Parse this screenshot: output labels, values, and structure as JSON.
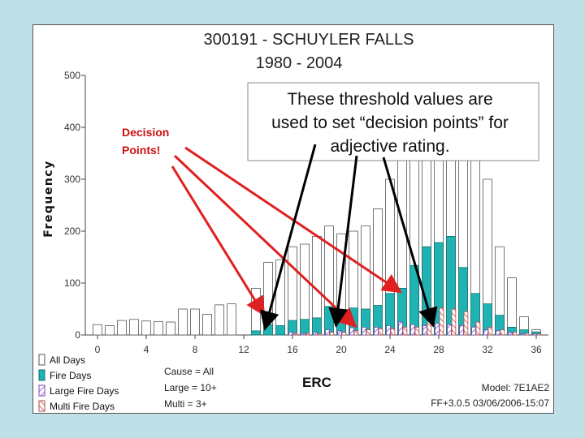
{
  "chart_data": {
    "type": "bar",
    "title_line1": "300191 - SCHUYLER FALLS",
    "title_line2": "1980 - 2004",
    "ylabel": "Frequency",
    "xlabel": "ERC",
    "ylim": [
      0,
      500
    ],
    "yticks": [
      0,
      100,
      200,
      300,
      400,
      500
    ],
    "xlim": [
      -1,
      37
    ],
    "xticks": [
      0,
      4,
      8,
      12,
      16,
      20,
      24,
      28,
      32,
      36
    ],
    "x": [
      0,
      1,
      2,
      3,
      4,
      5,
      6,
      7,
      8,
      9,
      10,
      11,
      12,
      13,
      14,
      15,
      16,
      17,
      18,
      19,
      20,
      21,
      22,
      23,
      24,
      25,
      26,
      27,
      28,
      29,
      30,
      31,
      32,
      33,
      34,
      35,
      36
    ],
    "series": [
      {
        "name": "All Days",
        "color": "#ffffff",
        "values": [
          20,
          18,
          28,
          30,
          27,
          26,
          25,
          50,
          50,
          40,
          58,
          60,
          0,
          90,
          140,
          145,
          170,
          175,
          190,
          210,
          195,
          200,
          210,
          243,
          300,
          400,
          450,
          480,
          460,
          430,
          400,
          350,
          300,
          170,
          110,
          35,
          10
        ]
      },
      {
        "name": "Fire Days",
        "color": "#1fb3b3",
        "values": [
          0,
          0,
          0,
          0,
          0,
          0,
          0,
          0,
          0,
          0,
          0,
          0,
          0,
          8,
          20,
          18,
          28,
          30,
          33,
          55,
          40,
          52,
          50,
          57,
          80,
          90,
          134,
          170,
          178,
          190,
          130,
          80,
          60,
          38,
          15,
          10,
          6
        ]
      },
      {
        "name": "Large Fire Days",
        "color": "#9a6ad0",
        "values": [
          0,
          0,
          0,
          0,
          0,
          0,
          0,
          0,
          0,
          0,
          0,
          0,
          0,
          0,
          0,
          0,
          5,
          3,
          5,
          10,
          8,
          14,
          15,
          15,
          18,
          25,
          20,
          18,
          22,
          20,
          18,
          15,
          10,
          8,
          5,
          2,
          2
        ]
      },
      {
        "name": "Multi Fire Days",
        "color": "#d86a6a",
        "values": [
          0,
          0,
          0,
          0,
          0,
          0,
          0,
          0,
          0,
          0,
          0,
          0,
          0,
          0,
          0,
          0,
          3,
          3,
          2,
          5,
          5,
          8,
          10,
          12,
          12,
          15,
          15,
          52,
          52,
          50,
          45,
          25,
          15,
          10,
          5,
          3,
          2
        ]
      }
    ],
    "legend_placement": "bottom-left"
  },
  "annotations": {
    "decision_line1": "Decision",
    "decision_line2": "Points!",
    "callout_line1": "These threshold values are",
    "callout_line2": "used to set “decision points” for",
    "callout_line3": "adjective rating."
  },
  "filters": {
    "cause": "Cause = All",
    "large": "Large = 10+",
    "multi": "Multi = 3+"
  },
  "footer": {
    "model": "Model: 7E1AE2",
    "version": "FF+3.0.5 03/06/2006-15:07"
  }
}
